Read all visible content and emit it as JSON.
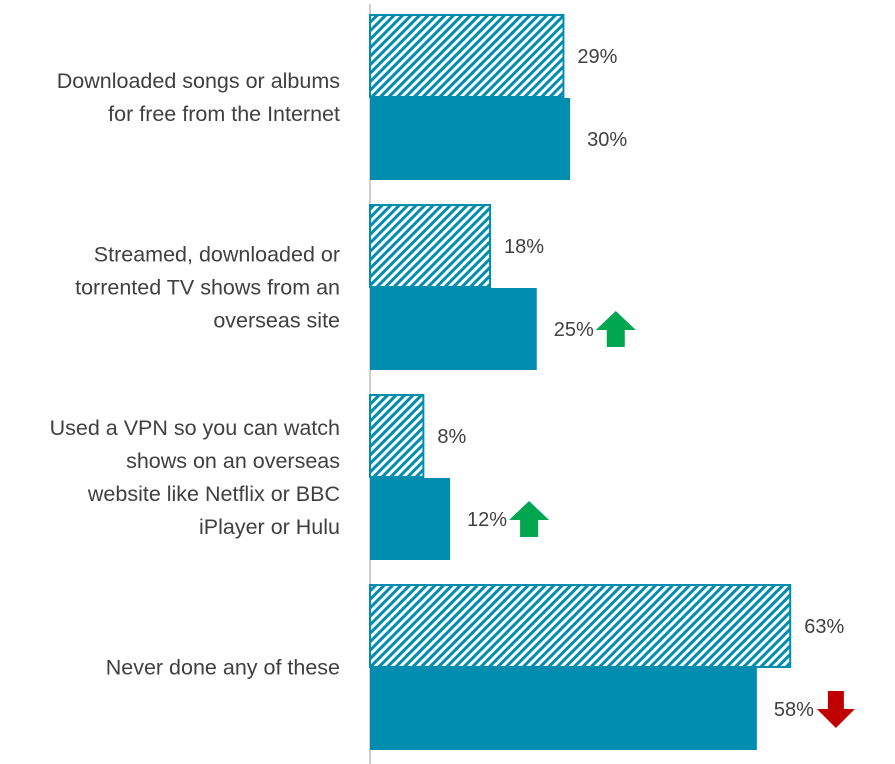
{
  "chart_data": {
    "type": "bar",
    "orientation": "horizontal",
    "categories": [
      [
        "Downloaded songs or albums",
        "for free from the Internet"
      ],
      [
        "Streamed, downloaded or",
        "torrented TV shows from an",
        "overseas site"
      ],
      [
        "Used a VPN so you can watch",
        "shows on an overseas",
        "website like Netflix or BBC",
        "iPlayer or Hulu"
      ],
      [
        "Never done any of these"
      ]
    ],
    "series": [
      {
        "pattern": "diagonal-hatch",
        "color": "#008DB0",
        "values": [
          29,
          18,
          8,
          63
        ],
        "labels": [
          "29%",
          "18%",
          "8%",
          "63%"
        ]
      },
      {
        "pattern": "solid",
        "color": "#008DB0",
        "values": [
          30,
          25,
          12,
          58
        ],
        "labels": [
          "30%",
          "25%",
          "12%",
          "58%"
        ]
      }
    ],
    "change_indicators": [
      null,
      "up",
      "up",
      "down"
    ],
    "indicator_colors": {
      "up": "#00A650",
      "down": "#C00000"
    },
    "xlim": [
      0,
      70
    ],
    "grid": false,
    "legend": "none"
  }
}
